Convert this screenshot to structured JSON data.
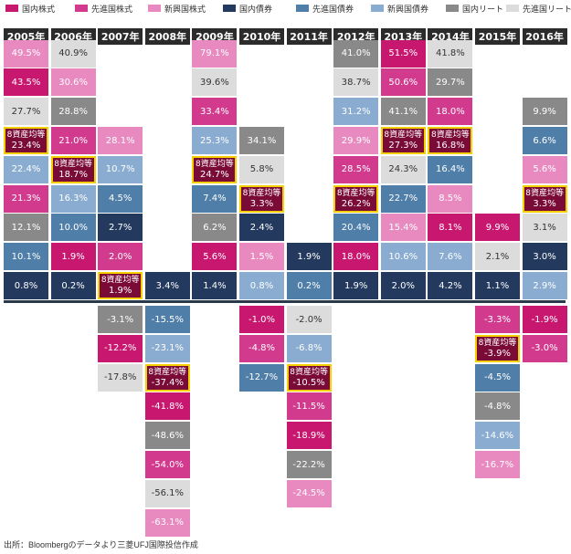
{
  "chart_data": {
    "type": "table",
    "title": "",
    "legend": [
      {
        "key": "jp_stock",
        "label": "国内株式",
        "color": "#c8176f"
      },
      {
        "key": "dev_stock",
        "label": "先進国株式",
        "color": "#d23a8e"
      },
      {
        "key": "em_stock",
        "label": "新興国株式",
        "color": "#e88ac0"
      },
      {
        "key": "jp_bond",
        "label": "国内債券",
        "color": "#24395e"
      },
      {
        "key": "dev_bond",
        "label": "先進国債券",
        "color": "#4f7ea8"
      },
      {
        "key": "em_bond",
        "label": "新興国債券",
        "color": "#89acd0"
      },
      {
        "key": "jp_reit",
        "label": "国内リート",
        "color": "#898989"
      },
      {
        "key": "dev_reit",
        "label": "先進国リート",
        "color": "#dcdcdc"
      },
      {
        "key": "avg8",
        "label": "8資産均等",
        "color": "#7a0a36"
      }
    ],
    "average_label": "8資産均等",
    "years": [
      {
        "label": "2005年",
        "positive": [
          {
            "a": "em_stock",
            "v": "49.5%"
          },
          {
            "a": "jp_stock",
            "v": "43.5%"
          },
          {
            "a": "dev_reit",
            "v": "27.7%"
          },
          {
            "a": "avg8",
            "v": "23.4%"
          },
          {
            "a": "em_bond",
            "v": "22.4%"
          },
          {
            "a": "dev_stock",
            "v": "21.3%"
          },
          {
            "a": "jp_reit",
            "v": "12.1%"
          },
          {
            "a": "dev_bond",
            "v": "10.1%"
          },
          {
            "a": "jp_bond",
            "v": "0.8%"
          }
        ],
        "negative": []
      },
      {
        "label": "2006年",
        "positive": [
          {
            "a": "dev_reit",
            "v": "40.9%"
          },
          {
            "a": "em_stock",
            "v": "30.6%"
          },
          {
            "a": "jp_reit",
            "v": "28.8%"
          },
          {
            "a": "dev_stock",
            "v": "21.0%"
          },
          {
            "a": "avg8",
            "v": "18.7%"
          },
          {
            "a": "em_bond",
            "v": "16.3%"
          },
          {
            "a": "dev_bond",
            "v": "10.0%"
          },
          {
            "a": "jp_stock",
            "v": "1.9%"
          },
          {
            "a": "jp_bond",
            "v": "0.2%"
          }
        ],
        "negative": []
      },
      {
        "label": "2007年",
        "positive": [
          {
            "a": "em_stock",
            "v": "28.1%"
          },
          {
            "a": "em_bond",
            "v": "10.7%"
          },
          {
            "a": "dev_bond",
            "v": "4.5%"
          },
          {
            "a": "jp_bond",
            "v": "2.7%"
          },
          {
            "a": "dev_stock",
            "v": "2.0%"
          },
          {
            "a": "avg8",
            "v": "1.9%"
          }
        ],
        "negative": [
          {
            "a": "jp_reit",
            "v": "-3.1%"
          },
          {
            "a": "jp_stock",
            "v": "-12.2%"
          },
          {
            "a": "dev_reit",
            "v": "-17.8%"
          }
        ]
      },
      {
        "label": "2008年",
        "positive": [
          {
            "a": "jp_bond",
            "v": "3.4%"
          }
        ],
        "negative": [
          {
            "a": "dev_bond",
            "v": "-15.5%"
          },
          {
            "a": "em_bond",
            "v": "-23.1%"
          },
          {
            "a": "avg8",
            "v": "-37.4%"
          },
          {
            "a": "jp_stock",
            "v": "-41.8%"
          },
          {
            "a": "jp_reit",
            "v": "-48.6%"
          },
          {
            "a": "dev_stock",
            "v": "-54.0%"
          },
          {
            "a": "dev_reit",
            "v": "-56.1%"
          },
          {
            "a": "em_stock",
            "v": "-63.1%"
          }
        ]
      },
      {
        "label": "2009年",
        "positive": [
          {
            "a": "em_stock",
            "v": "79.1%"
          },
          {
            "a": "dev_reit",
            "v": "39.6%"
          },
          {
            "a": "dev_stock",
            "v": "33.4%"
          },
          {
            "a": "em_bond",
            "v": "25.3%"
          },
          {
            "a": "avg8",
            "v": "24.7%"
          },
          {
            "a": "dev_bond",
            "v": "7.4%"
          },
          {
            "a": "jp_reit",
            "v": "6.2%"
          },
          {
            "a": "jp_stock",
            "v": "5.6%"
          },
          {
            "a": "jp_bond",
            "v": "1.4%"
          }
        ],
        "negative": []
      },
      {
        "label": "2010年",
        "positive": [
          {
            "a": "jp_reit",
            "v": "34.1%"
          },
          {
            "a": "dev_reit",
            "v": "5.8%"
          },
          {
            "a": "avg8",
            "v": "3.3%"
          },
          {
            "a": "jp_bond",
            "v": "2.4%"
          },
          {
            "a": "em_stock",
            "v": "1.5%"
          },
          {
            "a": "em_bond",
            "v": "0.8%"
          }
        ],
        "negative": [
          {
            "a": "jp_stock",
            "v": "-1.0%"
          },
          {
            "a": "dev_stock",
            "v": "-4.8%"
          },
          {
            "a": "dev_bond",
            "v": "-12.7%"
          }
        ]
      },
      {
        "label": "2011年",
        "positive": [
          {
            "a": "jp_bond",
            "v": "1.9%"
          },
          {
            "a": "dev_bond",
            "v": "0.2%"
          }
        ],
        "negative": [
          {
            "a": "dev_reit",
            "v": "-2.0%"
          },
          {
            "a": "em_bond",
            "v": "-6.8%"
          },
          {
            "a": "avg8",
            "v": "-10.5%"
          },
          {
            "a": "dev_stock",
            "v": "-11.5%"
          },
          {
            "a": "jp_stock",
            "v": "-18.9%"
          },
          {
            "a": "jp_reit",
            "v": "-22.2%"
          },
          {
            "a": "em_stock",
            "v": "-24.5%"
          }
        ]
      },
      {
        "label": "2012年",
        "positive": [
          {
            "a": "jp_reit",
            "v": "41.0%"
          },
          {
            "a": "dev_reit",
            "v": "38.7%"
          },
          {
            "a": "em_bond",
            "v": "31.2%"
          },
          {
            "a": "em_stock",
            "v": "29.9%"
          },
          {
            "a": "dev_stock",
            "v": "28.5%"
          },
          {
            "a": "avg8",
            "v": "26.2%"
          },
          {
            "a": "dev_bond",
            "v": "20.4%"
          },
          {
            "a": "jp_stock",
            "v": "18.0%"
          },
          {
            "a": "jp_bond",
            "v": "1.9%"
          }
        ],
        "negative": []
      },
      {
        "label": "2013年",
        "positive": [
          {
            "a": "jp_stock",
            "v": "51.5%"
          },
          {
            "a": "dev_stock",
            "v": "50.6%"
          },
          {
            "a": "jp_reit",
            "v": "41.1%"
          },
          {
            "a": "avg8",
            "v": "27.3%"
          },
          {
            "a": "dev_reit",
            "v": "24.3%"
          },
          {
            "a": "dev_bond",
            "v": "22.7%"
          },
          {
            "a": "em_stock",
            "v": "15.4%"
          },
          {
            "a": "em_bond",
            "v": "10.6%"
          },
          {
            "a": "jp_bond",
            "v": "2.0%"
          }
        ],
        "negative": []
      },
      {
        "label": "2014年",
        "positive": [
          {
            "a": "dev_reit",
            "v": "41.8%"
          },
          {
            "a": "jp_reit",
            "v": "29.7%"
          },
          {
            "a": "dev_stock",
            "v": "18.0%"
          },
          {
            "a": "avg8",
            "v": "16.8%"
          },
          {
            "a": "dev_bond",
            "v": "16.4%"
          },
          {
            "a": "em_stock",
            "v": "8.5%"
          },
          {
            "a": "jp_stock",
            "v": "8.1%"
          },
          {
            "a": "em_bond",
            "v": "7.6%"
          },
          {
            "a": "jp_bond",
            "v": "4.2%"
          }
        ],
        "negative": []
      },
      {
        "label": "2015年",
        "positive": [
          {
            "a": "jp_stock",
            "v": "9.9%"
          },
          {
            "a": "dev_reit",
            "v": "2.1%"
          },
          {
            "a": "jp_bond",
            "v": "1.1%"
          }
        ],
        "negative": [
          {
            "a": "dev_stock",
            "v": "-3.3%"
          },
          {
            "a": "avg8",
            "v": "-3.9%"
          },
          {
            "a": "dev_bond",
            "v": "-4.5%"
          },
          {
            "a": "jp_reit",
            "v": "-4.8%"
          },
          {
            "a": "em_bond",
            "v": "-14.6%"
          },
          {
            "a": "em_stock",
            "v": "-16.7%"
          }
        ]
      },
      {
        "label": "2016年",
        "positive": [
          {
            "a": "jp_reit",
            "v": "9.9%"
          },
          {
            "a": "dev_bond",
            "v": "6.6%"
          },
          {
            "a": "em_stock",
            "v": "5.6%"
          },
          {
            "a": "avg8",
            "v": "3.3%"
          },
          {
            "a": "dev_reit",
            "v": "3.1%"
          },
          {
            "a": "jp_bond",
            "v": "3.0%"
          },
          {
            "a": "em_bond",
            "v": "2.9%"
          }
        ],
        "negative": [
          {
            "a": "jp_stock",
            "v": "-1.9%"
          },
          {
            "a": "dev_stock",
            "v": "-3.0%"
          }
        ]
      }
    ]
  },
  "source_note": "出所：Bloombergのデータより三菱UFJ国際投信作成"
}
